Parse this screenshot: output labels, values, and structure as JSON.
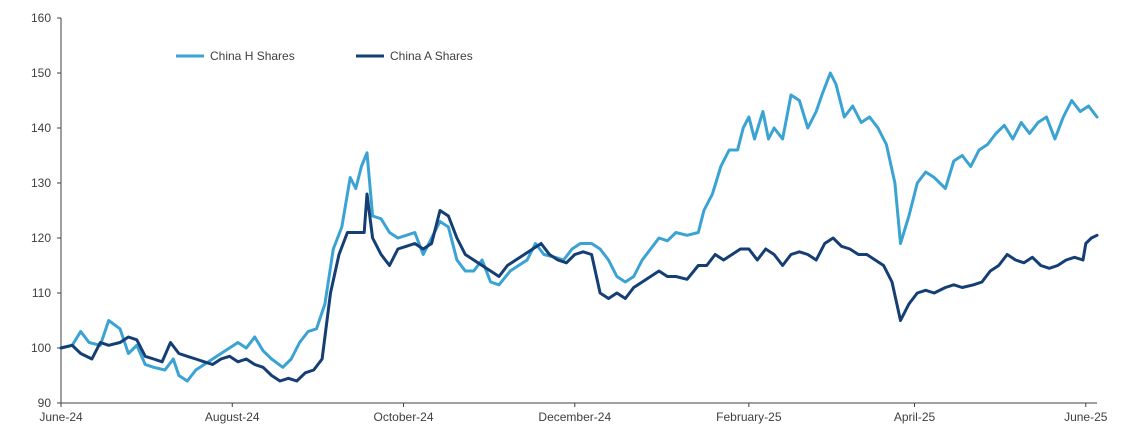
{
  "chart_data": {
    "type": "line",
    "title": "",
    "xlabel": "",
    "ylabel": "",
    "ylim": [
      90,
      160
    ],
    "yticks": [
      "90",
      "100",
      "110",
      "120",
      "130",
      "140",
      "150",
      "160"
    ],
    "xlim": [
      "2024-06-01",
      "2025-06-05"
    ],
    "xticks": [
      {
        "date": "2024-06-01",
        "label": "June-24"
      },
      {
        "date": "2024-08-01",
        "label": "August-24"
      },
      {
        "date": "2024-10-01",
        "label": "October-24"
      },
      {
        "date": "2024-12-01",
        "label": "December-24"
      },
      {
        "date": "2025-02-01",
        "label": "February-25"
      },
      {
        "date": "2025-04-01",
        "label": "April-25"
      },
      {
        "date": "2025-06-01",
        "label": "June-25"
      }
    ],
    "grid": false,
    "legend": "top-left",
    "series": [
      {
        "name": "China H Shares",
        "color": "#3aa3d3",
        "points": [
          [
            "2024-06-01",
            100
          ],
          [
            "2024-06-05",
            100.5
          ],
          [
            "2024-06-08",
            103
          ],
          [
            "2024-06-11",
            101
          ],
          [
            "2024-06-15",
            100.5
          ],
          [
            "2024-06-18",
            105
          ],
          [
            "2024-06-22",
            103.5
          ],
          [
            "2024-06-25",
            99
          ],
          [
            "2024-06-28",
            100.5
          ],
          [
            "2024-07-01",
            97
          ],
          [
            "2024-07-04",
            96.5
          ],
          [
            "2024-07-08",
            96
          ],
          [
            "2024-07-11",
            98
          ],
          [
            "2024-07-13",
            95
          ],
          [
            "2024-07-16",
            94
          ],
          [
            "2024-07-19",
            96
          ],
          [
            "2024-07-22",
            97
          ],
          [
            "2024-07-25",
            98
          ],
          [
            "2024-07-28",
            99
          ],
          [
            "2024-07-31",
            100
          ],
          [
            "2024-08-03",
            101
          ],
          [
            "2024-08-06",
            100
          ],
          [
            "2024-08-09",
            102
          ],
          [
            "2024-08-12",
            99.5
          ],
          [
            "2024-08-15",
            98
          ],
          [
            "2024-08-19",
            96.5
          ],
          [
            "2024-08-22",
            98
          ],
          [
            "2024-08-25",
            101
          ],
          [
            "2024-08-28",
            103
          ],
          [
            "2024-08-31",
            103.5
          ],
          [
            "2024-09-03",
            108
          ],
          [
            "2024-09-06",
            118
          ],
          [
            "2024-09-09",
            122
          ],
          [
            "2024-09-12",
            131
          ],
          [
            "2024-09-14",
            129
          ],
          [
            "2024-09-16",
            133
          ],
          [
            "2024-09-18",
            135.5
          ],
          [
            "2024-09-20",
            124
          ],
          [
            "2024-09-23",
            123.5
          ],
          [
            "2024-09-26",
            121
          ],
          [
            "2024-09-29",
            120
          ],
          [
            "2024-10-02",
            120.5
          ],
          [
            "2024-10-05",
            121
          ],
          [
            "2024-10-08",
            117
          ],
          [
            "2024-10-11",
            120
          ],
          [
            "2024-10-14",
            123
          ],
          [
            "2024-10-17",
            122
          ],
          [
            "2024-10-20",
            116
          ],
          [
            "2024-10-23",
            114
          ],
          [
            "2024-10-26",
            114
          ],
          [
            "2024-10-29",
            116
          ],
          [
            "2024-11-01",
            112
          ],
          [
            "2024-11-04",
            111.5
          ],
          [
            "2024-11-08",
            114
          ],
          [
            "2024-11-11",
            115
          ],
          [
            "2024-11-14",
            116
          ],
          [
            "2024-11-17",
            119
          ],
          [
            "2024-11-20",
            117
          ],
          [
            "2024-11-24",
            116.5
          ],
          [
            "2024-11-27",
            116
          ],
          [
            "2024-11-30",
            118
          ],
          [
            "2024-12-03",
            119
          ],
          [
            "2024-12-07",
            119
          ],
          [
            "2024-12-10",
            118
          ],
          [
            "2024-12-13",
            116
          ],
          [
            "2024-12-16",
            113
          ],
          [
            "2024-12-19",
            112
          ],
          [
            "2024-12-22",
            113
          ],
          [
            "2024-12-25",
            116
          ],
          [
            "2024-12-28",
            118
          ],
          [
            "2024-12-31",
            120
          ],
          [
            "2025-01-03",
            119.5
          ],
          [
            "2025-01-06",
            121
          ],
          [
            "2025-01-10",
            120.5
          ],
          [
            "2025-01-14",
            121
          ],
          [
            "2025-01-16",
            125
          ],
          [
            "2025-01-19",
            128
          ],
          [
            "2025-01-22",
            133
          ],
          [
            "2025-01-25",
            136
          ],
          [
            "2025-01-28",
            136
          ],
          [
            "2025-01-30",
            140
          ],
          [
            "2025-02-01",
            142
          ],
          [
            "2025-02-03",
            138
          ],
          [
            "2025-02-06",
            143
          ],
          [
            "2025-02-08",
            138
          ],
          [
            "2025-02-10",
            140
          ],
          [
            "2025-02-13",
            138
          ],
          [
            "2025-02-16",
            146
          ],
          [
            "2025-02-19",
            145
          ],
          [
            "2025-02-22",
            140
          ],
          [
            "2025-02-25",
            143
          ],
          [
            "2025-02-27",
            146
          ],
          [
            "2025-03-02",
            150
          ],
          [
            "2025-03-04",
            148
          ],
          [
            "2025-03-07",
            142
          ],
          [
            "2025-03-10",
            144
          ],
          [
            "2025-03-13",
            141
          ],
          [
            "2025-03-16",
            142
          ],
          [
            "2025-03-19",
            140
          ],
          [
            "2025-03-22",
            137
          ],
          [
            "2025-03-25",
            130
          ],
          [
            "2025-03-27",
            119
          ],
          [
            "2025-03-30",
            124
          ],
          [
            "2025-04-02",
            130
          ],
          [
            "2025-04-05",
            132
          ],
          [
            "2025-04-08",
            131
          ],
          [
            "2025-04-12",
            129
          ],
          [
            "2025-04-15",
            134
          ],
          [
            "2025-04-18",
            135
          ],
          [
            "2025-04-21",
            133
          ],
          [
            "2025-04-24",
            136
          ],
          [
            "2025-04-27",
            137
          ],
          [
            "2025-04-30",
            139
          ],
          [
            "2025-05-03",
            140.5
          ],
          [
            "2025-05-06",
            138
          ],
          [
            "2025-05-09",
            141
          ],
          [
            "2025-05-12",
            139
          ],
          [
            "2025-05-15",
            141
          ],
          [
            "2025-05-18",
            142
          ],
          [
            "2025-05-21",
            138
          ],
          [
            "2025-05-24",
            142
          ],
          [
            "2025-05-27",
            145
          ],
          [
            "2025-05-30",
            143
          ],
          [
            "2025-06-02",
            144
          ],
          [
            "2025-06-05",
            142
          ]
        ]
      },
      {
        "name": "China A Shares",
        "color": "#153e75",
        "points": [
          [
            "2024-06-01",
            100
          ],
          [
            "2024-06-05",
            100.5
          ],
          [
            "2024-06-08",
            99
          ],
          [
            "2024-06-12",
            98
          ],
          [
            "2024-06-15",
            101
          ],
          [
            "2024-06-18",
            100.5
          ],
          [
            "2024-06-22",
            101
          ],
          [
            "2024-06-25",
            102
          ],
          [
            "2024-06-28",
            101.5
          ],
          [
            "2024-07-01",
            98.5
          ],
          [
            "2024-07-04",
            98
          ],
          [
            "2024-07-07",
            97.5
          ],
          [
            "2024-07-10",
            101
          ],
          [
            "2024-07-13",
            99
          ],
          [
            "2024-07-16",
            98.5
          ],
          [
            "2024-07-19",
            98
          ],
          [
            "2024-07-22",
            97.5
          ],
          [
            "2024-07-25",
            97
          ],
          [
            "2024-07-28",
            98
          ],
          [
            "2024-07-31",
            98.5
          ],
          [
            "2024-08-03",
            97.5
          ],
          [
            "2024-08-06",
            98
          ],
          [
            "2024-08-09",
            97
          ],
          [
            "2024-08-12",
            96.5
          ],
          [
            "2024-08-15",
            95
          ],
          [
            "2024-08-18",
            94
          ],
          [
            "2024-08-21",
            94.5
          ],
          [
            "2024-08-24",
            94
          ],
          [
            "2024-08-27",
            95.5
          ],
          [
            "2024-08-30",
            96
          ],
          [
            "2024-09-02",
            98
          ],
          [
            "2024-09-05",
            110
          ],
          [
            "2024-09-08",
            117
          ],
          [
            "2024-09-11",
            121
          ],
          [
            "2024-09-14",
            121
          ],
          [
            "2024-09-17",
            121
          ],
          [
            "2024-09-18",
            128
          ],
          [
            "2024-09-20",
            120
          ],
          [
            "2024-09-23",
            117
          ],
          [
            "2024-09-26",
            115
          ],
          [
            "2024-09-29",
            118
          ],
          [
            "2024-10-02",
            118.5
          ],
          [
            "2024-10-05",
            119
          ],
          [
            "2024-10-08",
            118
          ],
          [
            "2024-10-11",
            119
          ],
          [
            "2024-10-14",
            125
          ],
          [
            "2024-10-17",
            124
          ],
          [
            "2024-10-20",
            120
          ],
          [
            "2024-10-23",
            117
          ],
          [
            "2024-10-26",
            116
          ],
          [
            "2024-10-29",
            115
          ],
          [
            "2024-11-01",
            114
          ],
          [
            "2024-11-04",
            113
          ],
          [
            "2024-11-07",
            115
          ],
          [
            "2024-11-10",
            116
          ],
          [
            "2024-11-13",
            117
          ],
          [
            "2024-11-16",
            118
          ],
          [
            "2024-11-19",
            119
          ],
          [
            "2024-11-22",
            117
          ],
          [
            "2024-11-25",
            116
          ],
          [
            "2024-11-28",
            115.5
          ],
          [
            "2024-12-01",
            117
          ],
          [
            "2024-12-04",
            117.5
          ],
          [
            "2024-12-07",
            117
          ],
          [
            "2024-12-10",
            110
          ],
          [
            "2024-12-13",
            109
          ],
          [
            "2024-12-16",
            110
          ],
          [
            "2024-12-19",
            109
          ],
          [
            "2024-12-22",
            111
          ],
          [
            "2024-12-25",
            112
          ],
          [
            "2024-12-28",
            113
          ],
          [
            "2024-12-31",
            114
          ],
          [
            "2025-01-03",
            113
          ],
          [
            "2025-01-06",
            113
          ],
          [
            "2025-01-10",
            112.5
          ],
          [
            "2025-01-14",
            115
          ],
          [
            "2025-01-17",
            115
          ],
          [
            "2025-01-20",
            117
          ],
          [
            "2025-01-23",
            116
          ],
          [
            "2025-01-26",
            117
          ],
          [
            "2025-01-29",
            118
          ],
          [
            "2025-02-01",
            118
          ],
          [
            "2025-02-04",
            116
          ],
          [
            "2025-02-07",
            118
          ],
          [
            "2025-02-10",
            117
          ],
          [
            "2025-02-13",
            115
          ],
          [
            "2025-02-16",
            117
          ],
          [
            "2025-02-19",
            117.5
          ],
          [
            "2025-02-22",
            117
          ],
          [
            "2025-02-25",
            116
          ],
          [
            "2025-02-28",
            119
          ],
          [
            "2025-03-03",
            120
          ],
          [
            "2025-03-06",
            118.5
          ],
          [
            "2025-03-09",
            118
          ],
          [
            "2025-03-12",
            117
          ],
          [
            "2025-03-15",
            117
          ],
          [
            "2025-03-18",
            116
          ],
          [
            "2025-03-21",
            115
          ],
          [
            "2025-03-24",
            112
          ],
          [
            "2025-03-27",
            105
          ],
          [
            "2025-03-30",
            108
          ],
          [
            "2025-04-02",
            110
          ],
          [
            "2025-04-05",
            110.5
          ],
          [
            "2025-04-08",
            110
          ],
          [
            "2025-04-12",
            111
          ],
          [
            "2025-04-15",
            111.5
          ],
          [
            "2025-04-18",
            111
          ],
          [
            "2025-04-22",
            111.5
          ],
          [
            "2025-04-25",
            112
          ],
          [
            "2025-04-28",
            114
          ],
          [
            "2025-05-01",
            115
          ],
          [
            "2025-05-04",
            117
          ],
          [
            "2025-05-07",
            116
          ],
          [
            "2025-05-10",
            115.5
          ],
          [
            "2025-05-13",
            116.5
          ],
          [
            "2025-05-16",
            115
          ],
          [
            "2025-05-19",
            114.5
          ],
          [
            "2025-05-22",
            115
          ],
          [
            "2025-05-25",
            116
          ],
          [
            "2025-05-28",
            116.5
          ],
          [
            "2025-05-31",
            116
          ],
          [
            "2025-06-01",
            119
          ],
          [
            "2025-06-03",
            120
          ],
          [
            "2025-06-05",
            120.5
          ]
        ]
      }
    ]
  }
}
